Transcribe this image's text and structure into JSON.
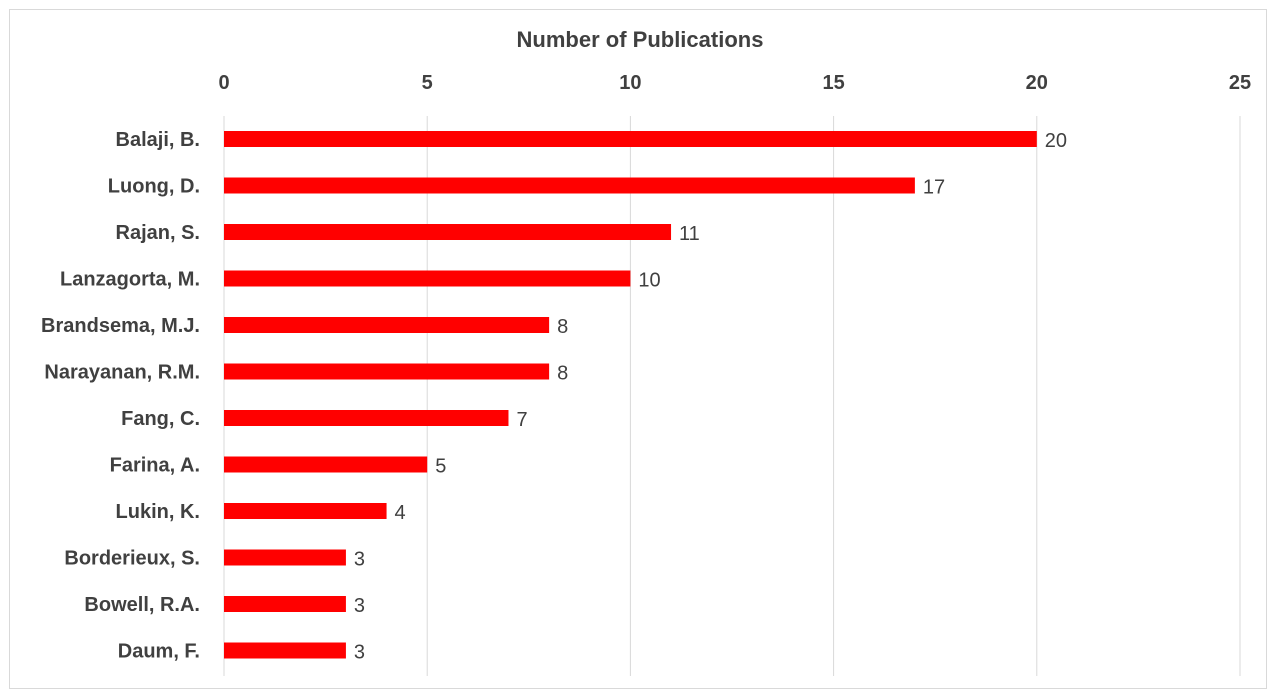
{
  "chart_data": {
    "type": "bar",
    "orientation": "horizontal",
    "title": "Number of Publications",
    "xlabel": "",
    "ylabel": "",
    "xlim": [
      0,
      25
    ],
    "x_ticks": [
      "0",
      "5",
      "10",
      "15",
      "20",
      "25"
    ],
    "x_axis_position": "top",
    "grid": true,
    "legend": "none",
    "bar_color": "#ff0000",
    "categories": [
      "Balaji, B.",
      "Luong, D.",
      "Rajan, S.",
      "Lanzagorta, M.",
      "Brandsema, M.J.",
      "Narayanan, R.M.",
      "Fang, C.",
      "Farina, A.",
      "Lukin, K.",
      "Borderieux, S.",
      "Bowell, R.A.",
      "Daum, F."
    ],
    "values": [
      20,
      17,
      11,
      10,
      8,
      8,
      7,
      5,
      4,
      3,
      3,
      3
    ],
    "data_labels": [
      "20",
      "17",
      "11",
      "10",
      "8",
      "8",
      "7",
      "5",
      "4",
      "3",
      "3",
      "3"
    ]
  }
}
